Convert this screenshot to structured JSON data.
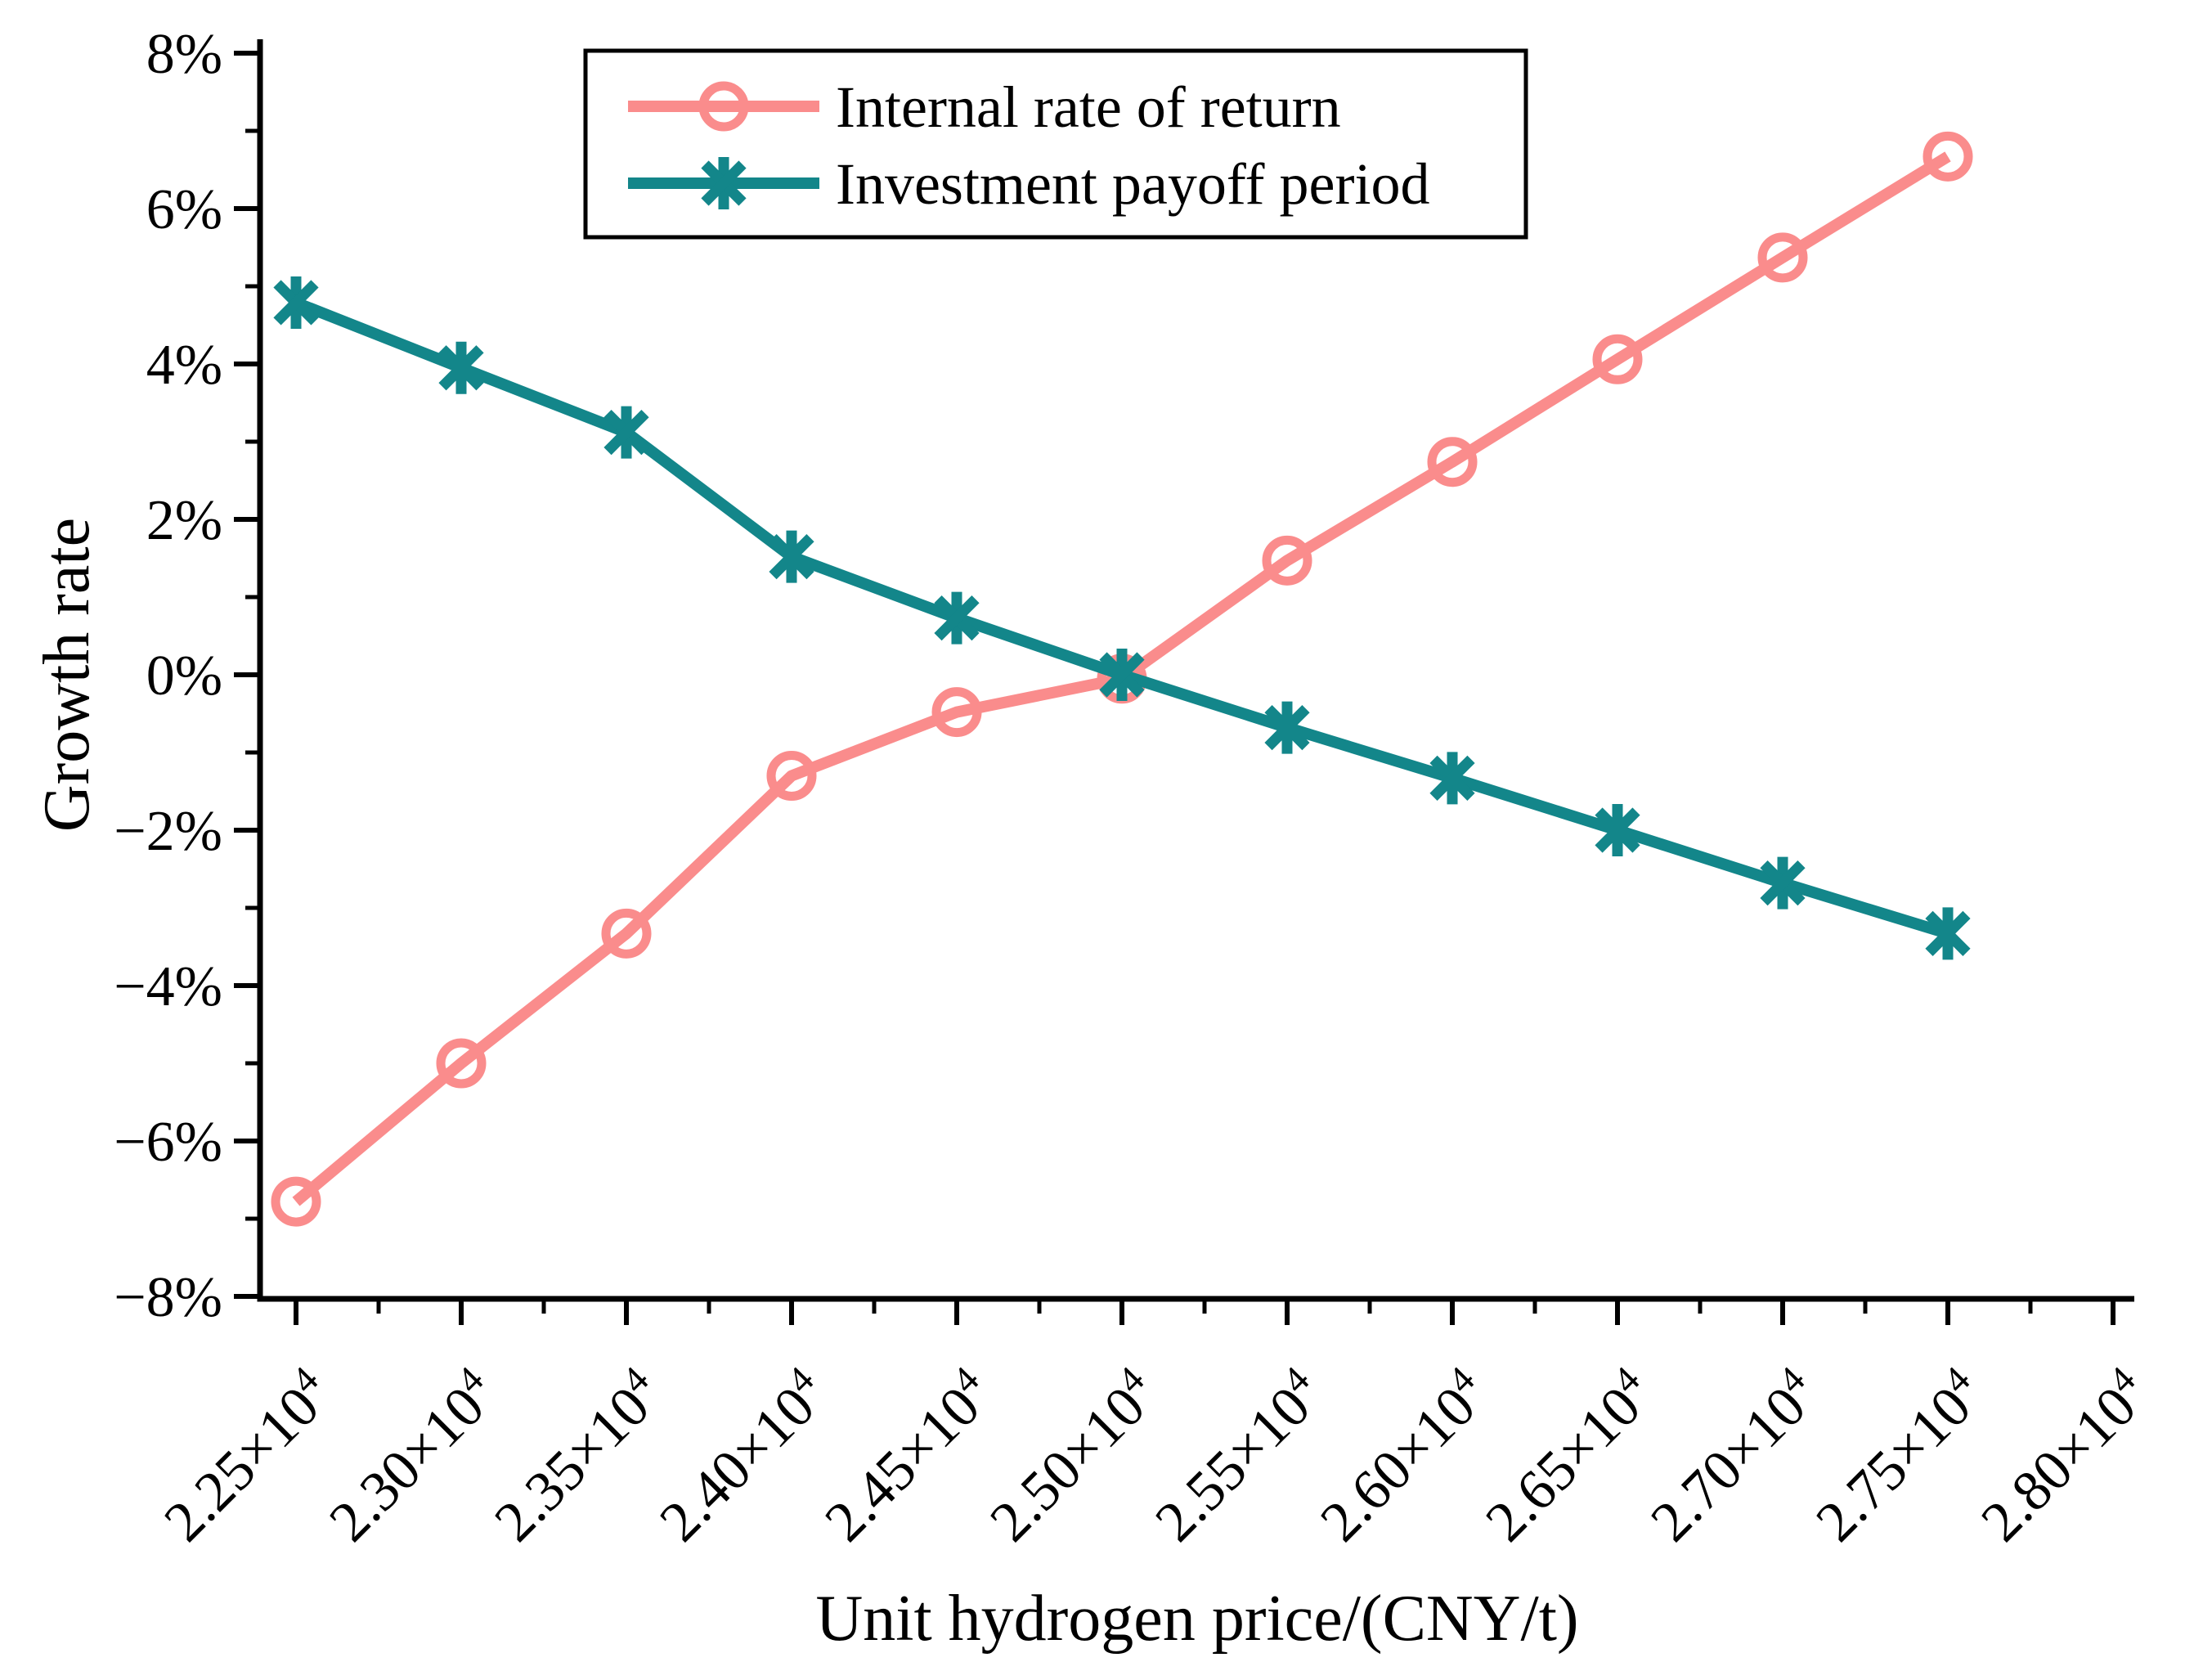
{
  "figure": {
    "background": "#ffffff",
    "axis_color": "#000000",
    "font_style": "serif"
  },
  "chart_data": {
    "type": "line",
    "title": "",
    "xlabel": "Unit hydrogen price/(CNY/t)",
    "ylabel": "Growth rate",
    "x_tick_labels": [
      "2.25×10⁴",
      "2.30×10⁴",
      "2.35×10⁴",
      "2.40×10⁴",
      "2.45×10⁴",
      "2.50×10⁴",
      "2.55×10⁴",
      "2.60×10⁴",
      "2.65×10⁴",
      "2.70×10⁴",
      "2.75×10⁴",
      "2.80×10⁴"
    ],
    "x_values": [
      22500,
      23000,
      23500,
      24000,
      24500,
      25000,
      25500,
      26000,
      26500,
      27000,
      27500
    ],
    "y_tick_labels": [
      "8%",
      "6%",
      "4%",
      "2%",
      "0%",
      "−2%",
      "−4%",
      "−6%",
      "−8%"
    ],
    "ylim": [
      -8,
      8
    ],
    "y_major_step_percent": 2,
    "y_minor_step_percent": 1,
    "grid": false,
    "legend_position": "top-center",
    "legend_border": "#000000",
    "series": [
      {
        "name": "Internal rate of return",
        "color": "#FA8C8C",
        "marker": "circle",
        "values_percent": [
          -6.78,
          -5.0,
          -3.33,
          -1.3,
          -0.48,
          -0.05,
          1.47,
          2.74,
          4.06,
          5.37,
          6.67
        ]
      },
      {
        "name": "Investment payoff period",
        "color": "#13868A",
        "marker": "asterisk",
        "values_percent": [
          4.79,
          3.95,
          3.12,
          1.52,
          0.73,
          0.0,
          -0.68,
          -1.33,
          -2.0,
          -2.68,
          -3.33
        ]
      }
    ]
  }
}
